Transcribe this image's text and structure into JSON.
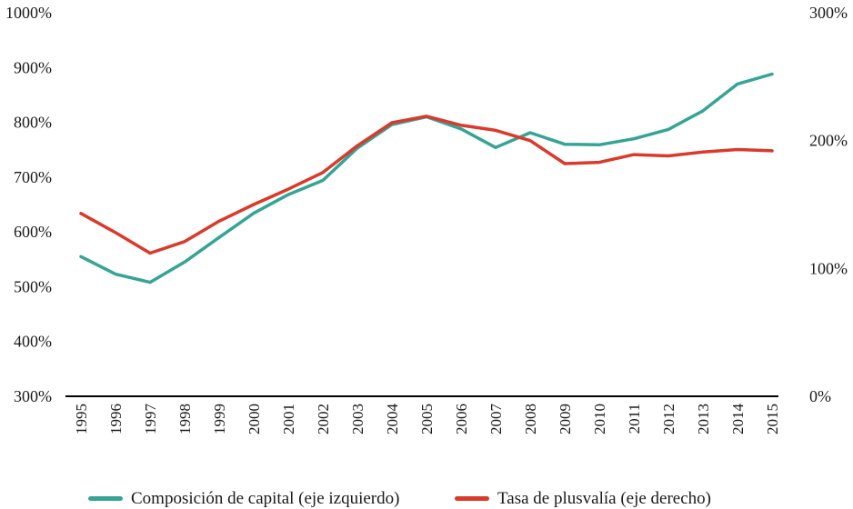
{
  "chart_data": {
    "type": "line",
    "x": [
      "1995",
      "1996",
      "1997",
      "1998",
      "1999",
      "2000",
      "2001",
      "2002",
      "2003",
      "2004",
      "2005",
      "2006",
      "2007",
      "2008",
      "2009",
      "2010",
      "2011",
      "2012",
      "2013",
      "2014",
      "2015"
    ],
    "series": [
      {
        "name": "Composición de capital (eje izquierdo)",
        "axis": "left",
        "color": "#36A495",
        "values": [
          555,
          523,
          508,
          545,
          590,
          634,
          668,
          694,
          753,
          796,
          810,
          788,
          754,
          781,
          760,
          759,
          770,
          787,
          821,
          870,
          888
        ]
      },
      {
        "name": "Tasa de plusvalía (eje derecho)",
        "axis": "right",
        "color": "#D93A2B",
        "values": [
          143,
          128,
          112,
          121,
          137,
          150,
          162,
          175,
          196,
          214,
          219,
          212,
          208,
          200,
          182,
          183,
          189,
          188,
          191,
          193,
          192
        ]
      }
    ],
    "left_axis": {
      "min": 300,
      "max": 1000,
      "unit": "%",
      "ticks": [
        {
          "label": "300%",
          "value": 300
        },
        {
          "label": "400%",
          "value": 400
        },
        {
          "label": "500%",
          "value": 500
        },
        {
          "label": "600%",
          "value": 600
        },
        {
          "label": "700%",
          "value": 700
        },
        {
          "label": "800%",
          "value": 800
        },
        {
          "label": "900%",
          "value": 900
        },
        {
          "label": "1000%",
          "value": 1000
        }
      ]
    },
    "right_axis": {
      "min": 0,
      "max": 300,
      "unit": "%",
      "ticks": [
        {
          "label": "0%",
          "value": 0
        },
        {
          "label": "100%",
          "value": 100
        },
        {
          "label": "200%",
          "value": 200
        },
        {
          "label": "300%",
          "value": 300
        }
      ]
    },
    "grid": false,
    "legend_position": "bottom",
    "axis_line_color": "#000000",
    "text_color": "#1a1a1a"
  }
}
